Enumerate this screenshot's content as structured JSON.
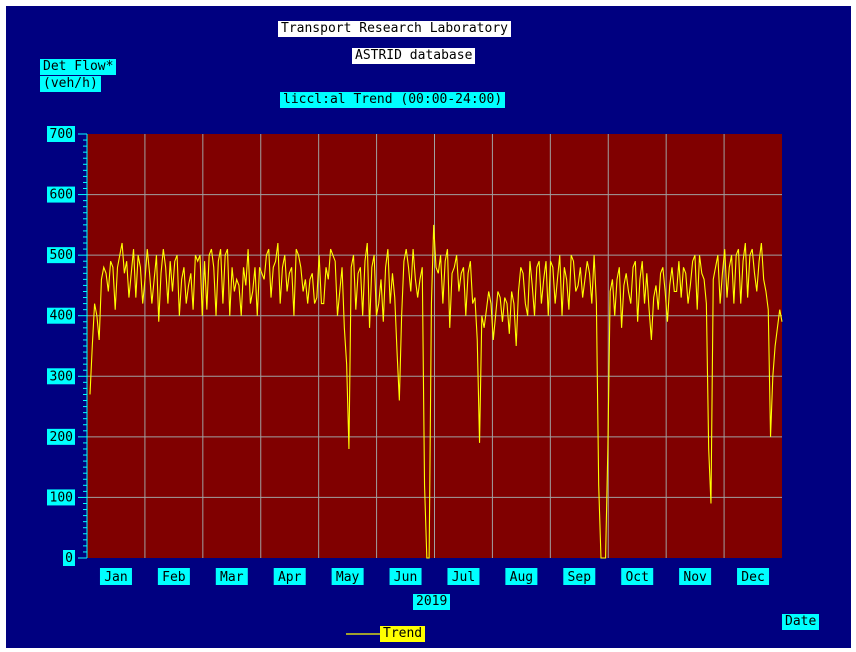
{
  "header": {
    "title_line1": "Transport Research Laboratory",
    "title_line2": "ASTRID database",
    "chart_title": "liccl:al Trend (00:00-24:00)"
  },
  "axes": {
    "ylabel_line1": "Det Flow*",
    "ylabel_line2": "(veh/h)",
    "xlabel": "Date",
    "year": "2019"
  },
  "legend": {
    "label": "Trend"
  },
  "colors": {
    "background": "#000080",
    "plot_area": "#800000",
    "series": "#ffff00",
    "grid": "#a0a0a0",
    "label_bg": "#00ffff"
  },
  "chart_data": {
    "type": "line",
    "title": "liccl:al Trend (00:00-24:00)",
    "ylabel": "Det Flow* (veh/h)",
    "xlabel": "Date",
    "ylim": [
      0,
      700
    ],
    "yticks": [
      0,
      100,
      200,
      300,
      400,
      500,
      600,
      700
    ],
    "xticks": [
      "Jan",
      "Feb",
      "Mar",
      "Apr",
      "May",
      "Jun",
      "Jul",
      "Aug",
      "Sep",
      "Oct",
      "Nov",
      "Dec"
    ],
    "grid": true,
    "legend_position": "bottom-center",
    "series": [
      {
        "name": "Trend",
        "values": [
          270,
          350,
          420,
          400,
          360,
          460,
          480,
          470,
          440,
          490,
          480,
          410,
          480,
          500,
          520,
          470,
          490,
          430,
          470,
          510,
          430,
          500,
          480,
          420,
          460,
          510,
          470,
          420,
          460,
          500,
          390,
          470,
          510,
          480,
          420,
          490,
          440,
          490,
          500,
          400,
          460,
          480,
          420,
          450,
          470,
          410,
          500,
          490,
          500,
          400,
          490,
          410,
          500,
          510,
          480,
          400,
          490,
          510,
          420,
          500,
          510,
          400,
          480,
          440,
          460,
          450,
          400,
          480,
          450,
          510,
          420,
          440,
          480,
          400,
          480,
          470,
          460,
          500,
          510,
          430,
          480,
          490,
          520,
          420,
          480,
          500,
          440,
          470,
          480,
          400,
          510,
          500,
          480,
          440,
          460,
          420,
          460,
          470,
          420,
          430,
          500,
          420,
          420,
          480,
          460,
          510,
          500,
          490,
          400,
          440,
          480,
          380,
          320,
          180,
          480,
          500,
          410,
          470,
          480,
          400,
          490,
          520,
          380,
          480,
          500,
          400,
          420,
          460,
          390,
          480,
          510,
          420,
          470,
          430,
          340,
          260,
          400,
          490,
          510,
          480,
          440,
          510,
          460,
          430,
          460,
          480,
          120,
          0,
          0,
          420,
          550,
          480,
          470,
          500,
          420,
          490,
          510,
          380,
          470,
          480,
          500,
          440,
          470,
          480,
          400,
          470,
          490,
          420,
          430,
          360,
          190,
          400,
          380,
          410,
          440,
          420,
          360,
          400,
          440,
          430,
          390,
          430,
          420,
          370,
          440,
          420,
          350,
          440,
          480,
          470,
          420,
          400,
          490,
          450,
          400,
          480,
          490,
          420,
          460,
          490,
          400,
          490,
          480,
          420,
          460,
          500,
          400,
          480,
          460,
          410,
          500,
          490,
          440,
          450,
          480,
          430,
          460,
          490,
          470,
          420,
          500,
          420,
          120,
          0,
          0,
          0,
          180,
          440,
          460,
          400,
          460,
          480,
          380,
          450,
          470,
          440,
          420,
          480,
          490,
          390,
          460,
          490,
          420,
          470,
          410,
          360,
          430,
          450,
          410,
          470,
          480,
          440,
          390,
          450,
          480,
          440,
          440,
          490,
          430,
          480,
          470,
          420,
          450,
          490,
          500,
          410,
          500,
          470,
          460,
          420,
          180,
          90,
          460,
          480,
          500,
          420,
          470,
          510,
          430,
          480,
          500,
          420,
          500,
          510,
          420,
          490,
          520,
          430,
          500,
          510,
          470,
          440,
          490,
          520,
          460,
          440,
          410,
          200,
          300,
          350,
          380,
          410,
          390
        ]
      }
    ]
  }
}
